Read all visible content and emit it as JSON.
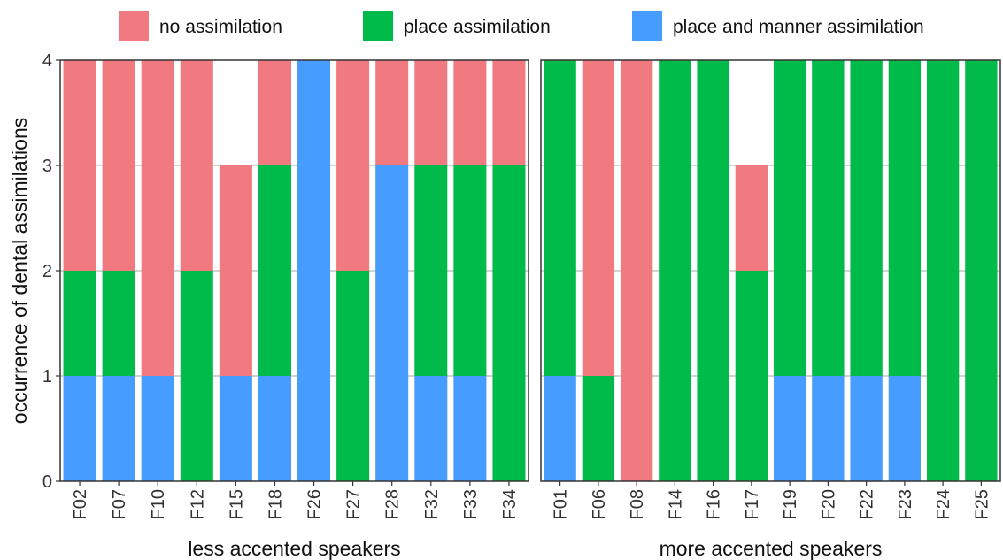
{
  "colors": {
    "none": "#F07A80",
    "place": "#00BA4A",
    "manner": "#469CFF",
    "grid": "#A6A6A6",
    "frame": "#333333"
  },
  "legend": [
    {
      "key": "none",
      "label": "no assimilation"
    },
    {
      "key": "place",
      "label": "place assimilation"
    },
    {
      "key": "manner",
      "label": "place and manner assimilation"
    }
  ],
  "chart_data": {
    "type": "bar",
    "stacked": true,
    "ylabel": "occurrence of dental assimilations",
    "ylim": [
      0,
      4
    ],
    "yticks": [
      0,
      1,
      2,
      3,
      4
    ],
    "grid": true,
    "legend_position": "top",
    "stack_order_bottom_to_top": [
      "place and manner assimilation",
      "place assimilation",
      "no assimilation"
    ],
    "panels": [
      {
        "title": "less accented speakers",
        "categories": [
          "F02",
          "F07",
          "F10",
          "F12",
          "F15",
          "F18",
          "F26",
          "F27",
          "F28",
          "F32",
          "F33",
          "F34"
        ],
        "series": [
          {
            "name": "place and manner assimilation",
            "key": "manner",
            "values": [
              1,
              1,
              1,
              0,
              1,
              1,
              4,
              0,
              3,
              1,
              1,
              0
            ]
          },
          {
            "name": "place assimilation",
            "key": "place",
            "values": [
              1,
              1,
              0,
              2,
              0,
              2,
              0,
              2,
              0,
              2,
              2,
              3
            ]
          },
          {
            "name": "no assimilation",
            "key": "none",
            "values": [
              2,
              2,
              3,
              2,
              2,
              1,
              0,
              2,
              1,
              1,
              1,
              1
            ]
          }
        ]
      },
      {
        "title": "more accented speakers",
        "categories": [
          "F01",
          "F06",
          "F08",
          "F14",
          "F16",
          "F17",
          "F19",
          "F20",
          "F22",
          "F23",
          "F24",
          "F25"
        ],
        "series": [
          {
            "name": "place and manner assimilation",
            "key": "manner",
            "values": [
              1,
              0,
              0,
              0,
              0,
              0,
              1,
              1,
              1,
              1,
              0,
              0
            ]
          },
          {
            "name": "place assimilation",
            "key": "place",
            "values": [
              3,
              1,
              0,
              4,
              4,
              2,
              3,
              3,
              3,
              3,
              4,
              4
            ]
          },
          {
            "name": "no assimilation",
            "key": "none",
            "values": [
              0,
              3,
              4,
              0,
              0,
              1,
              0,
              0,
              0,
              0,
              0,
              0
            ]
          }
        ]
      }
    ]
  }
}
